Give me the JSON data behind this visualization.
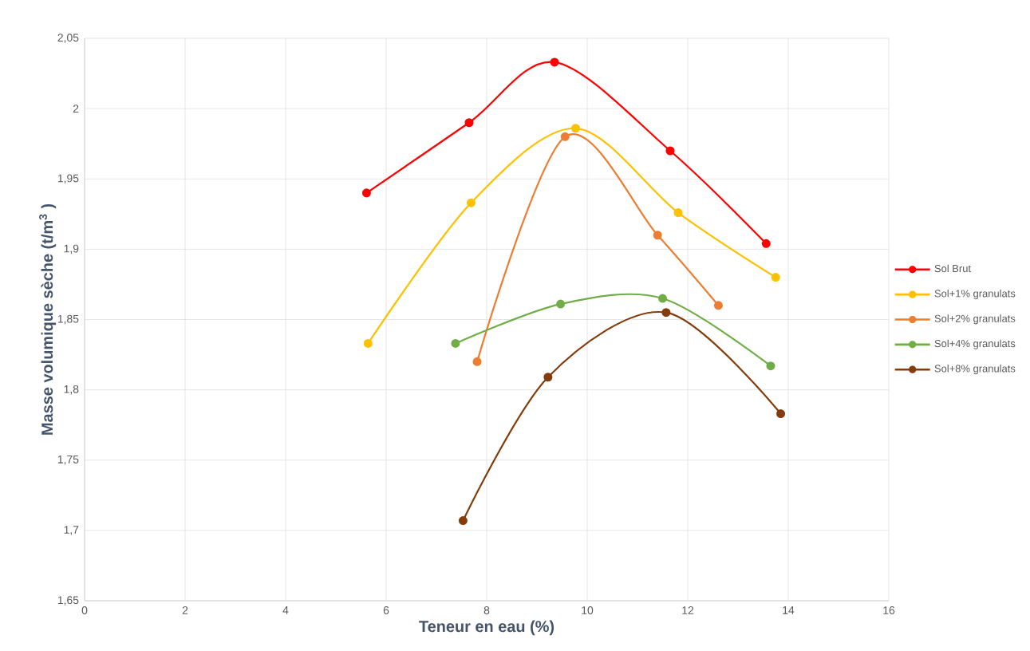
{
  "chart_data": {
    "type": "line",
    "xlabel": "Teneur en eau (%)",
    "ylabel": "Masse volumique sèche (t/m$^{3}$ )",
    "xlim": [
      0,
      16
    ],
    "xticks": [
      0,
      2,
      4,
      6,
      8,
      10,
      12,
      14,
      16
    ],
    "ylim": [
      1.65,
      2.05
    ],
    "yticks": [
      {
        "value": 1.65,
        "label": "1,65"
      },
      {
        "value": 1.7,
        "label": "1,7"
      },
      {
        "value": 1.75,
        "label": "1,75"
      },
      {
        "value": 1.8,
        "label": "1,8"
      },
      {
        "value": 1.85,
        "label": "1,85"
      },
      {
        "value": 1.9,
        "label": "1,9"
      },
      {
        "value": 1.95,
        "label": "1,95"
      },
      {
        "value": 2.0,
        "label": "2"
      },
      {
        "value": 2.05,
        "label": "2,05"
      }
    ],
    "grid": true,
    "legend": "right",
    "marker": "circle",
    "line_style": "solid",
    "series": [
      {
        "name": "Sol Brut",
        "color": "#ff0000",
        "x": [
          5.61,
          7.65,
          9.35,
          11.65,
          13.56
        ],
        "values": [
          1.94,
          1.99,
          2.033,
          1.97,
          1.904
        ]
      },
      {
        "name": "Sol+1% granulats",
        "color": "#ffc000",
        "x": [
          5.64,
          7.69,
          9.77,
          11.81,
          13.75
        ],
        "values": [
          1.833,
          1.933,
          1.986,
          1.926,
          1.88
        ]
      },
      {
        "name": "Sol+2% granulats",
        "color": "#ed7d31",
        "x": [
          7.81,
          9.56,
          11.4,
          12.61
        ],
        "values": [
          1.82,
          1.98,
          1.91,
          1.86
        ]
      },
      {
        "name": "Sol+4% granulats",
        "color": "#70ad47",
        "x": [
          7.38,
          9.47,
          11.5,
          13.65
        ],
        "values": [
          1.833,
          1.861,
          1.865,
          1.817
        ]
      },
      {
        "name": "Sol+8% granulats",
        "color": "#843c0c",
        "x": [
          7.53,
          9.22,
          11.57,
          13.85
        ],
        "values": [
          1.707,
          1.809,
          1.855,
          1.783
        ]
      }
    ]
  }
}
